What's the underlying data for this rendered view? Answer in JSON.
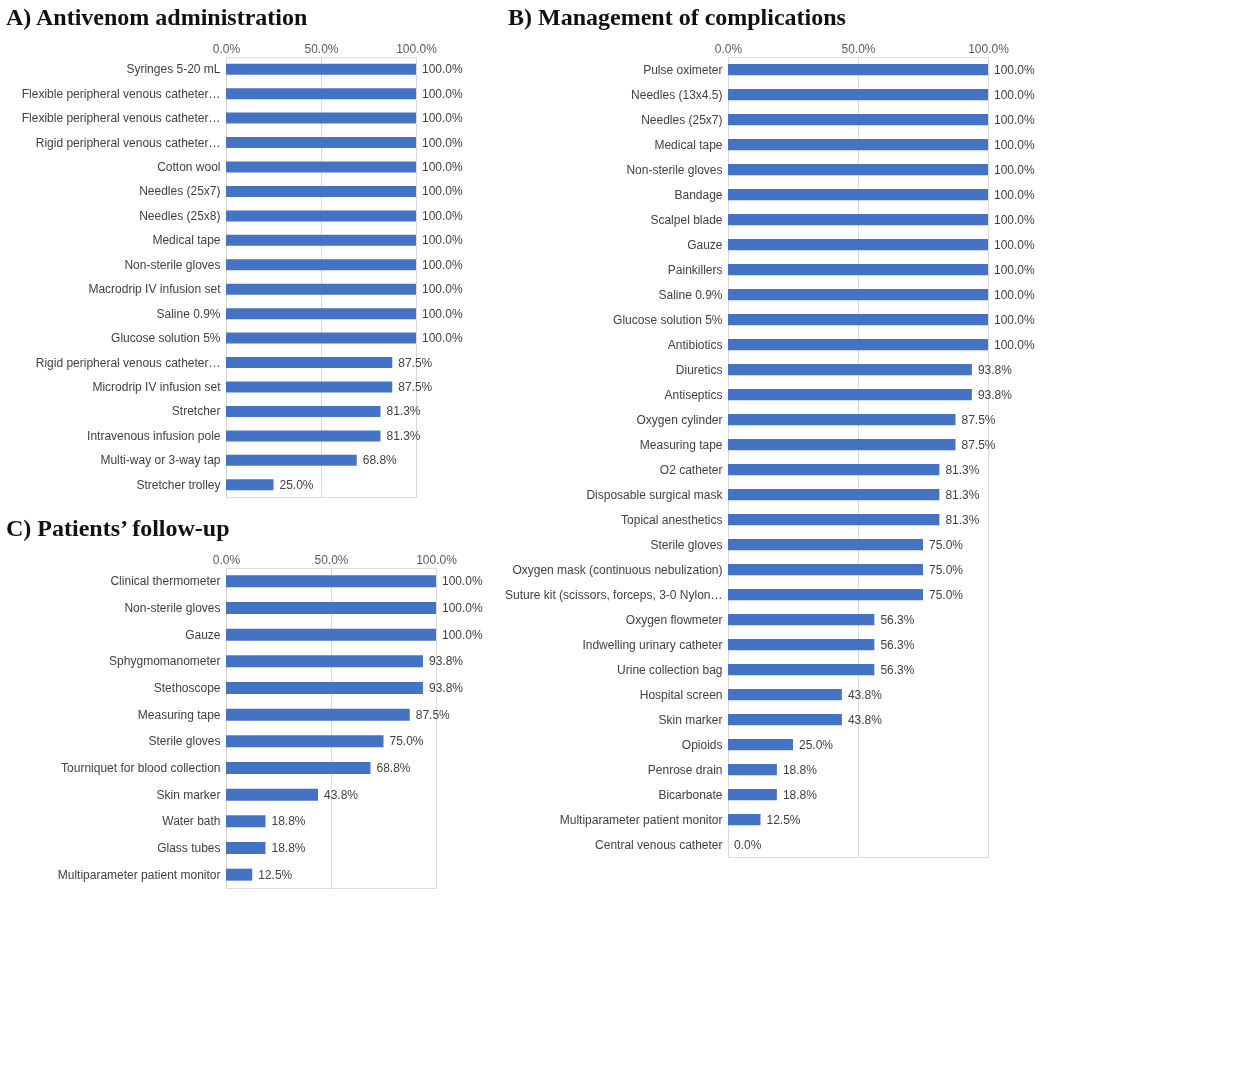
{
  "chart_data": [
    {
      "type": "bar",
      "orientation": "horizontal",
      "title": "A)  Antivenom administration",
      "color": "#4472c4",
      "grid": "x",
      "xlim": [
        0,
        100
      ],
      "xticks": [
        {
          "value": 0,
          "label": "0.0%"
        },
        {
          "value": 50,
          "label": "50.0%"
        },
        {
          "value": 100,
          "label": "100.0%"
        }
      ],
      "categories": [
        "Syringes 5-20 mL",
        "Flexible peripheral venous catheter…",
        "Flexible peripheral venous catheter…",
        "Rigid peripheral venous catheter…",
        "Cotton wool",
        "Needles (25x7)",
        "Needles (25x8)",
        "Medical tape",
        "Non-sterile gloves",
        "Macrodrip IV infusion set",
        "Saline 0.9%",
        "Glucose solution 5%",
        "Rigid peripheral venous catheter…",
        "Microdrip IV infusion set",
        "Stretcher",
        "Intravenous infusion pole",
        "Multi-way or 3-way tap",
        "Stretcher trolley"
      ],
      "values": [
        100,
        100,
        100,
        100,
        100,
        100,
        100,
        100,
        100,
        100,
        100,
        100,
        87.5,
        87.5,
        81.3,
        81.3,
        68.8,
        25.0
      ],
      "value_labels": [
        "100.0%",
        "100.0%",
        "100.0%",
        "100.0%",
        "100.0%",
        "100.0%",
        "100.0%",
        "100.0%",
        "100.0%",
        "100.0%",
        "100.0%",
        "100.0%",
        "87.5%",
        "87.5%",
        "81.3%",
        "81.3%",
        "68.8%",
        "25.0%"
      ]
    },
    {
      "type": "bar",
      "orientation": "horizontal",
      "title": "B)  Management of complications",
      "color": "#4472c4",
      "grid": "x",
      "xlim": [
        0,
        100
      ],
      "xticks": [
        {
          "value": 0,
          "label": "0.0%"
        },
        {
          "value": 50,
          "label": "50.0%"
        },
        {
          "value": 100,
          "label": "100.0%"
        }
      ],
      "categories": [
        "Pulse oximeter",
        "Needles (13x4.5)",
        "Needles (25x7)",
        "Medical tape",
        "Non-sterile gloves",
        "Bandage",
        "Scalpel blade",
        "Gauze",
        "Painkillers",
        "Saline 0.9%",
        "Glucose solution 5%",
        "Antibiotics",
        "Diuretics",
        "Antiseptics",
        "Oxygen cylinder",
        "Measuring tape",
        "O2 catheter",
        "Disposable surgical mask",
        "Topical anesthetics",
        "Sterile gloves",
        "Oxygen mask (continuous nebulization)",
        "Suture kit (scissors, forceps, 3-0 Nylon…",
        "Oxygen flowmeter",
        "Indwelling urinary catheter",
        "Urine collection bag",
        "Hospital screen",
        "Skin marker",
        "Opioids",
        "Penrose drain",
        "Bicarbonate",
        "Multiparameter patient monitor",
        "Central venous catheter"
      ],
      "values": [
        100,
        100,
        100,
        100,
        100,
        100,
        100,
        100,
        100,
        100,
        100,
        100,
        93.8,
        93.8,
        87.5,
        87.5,
        81.3,
        81.3,
        81.3,
        75.0,
        75.0,
        75.0,
        56.3,
        56.3,
        56.3,
        43.8,
        43.8,
        25.0,
        18.8,
        18.8,
        12.5,
        0.0
      ],
      "value_labels": [
        "100.0%",
        "100.0%",
        "100.0%",
        "100.0%",
        "100.0%",
        "100.0%",
        "100.0%",
        "100.0%",
        "100.0%",
        "100.0%",
        "100.0%",
        "100.0%",
        "93.8%",
        "93.8%",
        "87.5%",
        "87.5%",
        "81.3%",
        "81.3%",
        "81.3%",
        "75.0%",
        "75.0%",
        "75.0%",
        "56.3%",
        "56.3%",
        "56.3%",
        "43.8%",
        "43.8%",
        "25.0%",
        "18.8%",
        "18.8%",
        "12.5%",
        "0.0%"
      ]
    },
    {
      "type": "bar",
      "orientation": "horizontal",
      "title": "C)  Patients’ follow-up",
      "color": "#4472c4",
      "grid": "x",
      "xlim": [
        0,
        100
      ],
      "xticks": [
        {
          "value": 0,
          "label": "0.0%"
        },
        {
          "value": 50,
          "label": "50.0%"
        },
        {
          "value": 100,
          "label": "100.0%"
        }
      ],
      "categories": [
        "Clinical thermometer",
        "Non-sterile gloves",
        "Gauze",
        "Sphygmomanometer",
        "Stethoscope",
        "Measuring tape",
        "Sterile gloves",
        "Tourniquet for blood collection",
        "Skin marker",
        "Water bath",
        "Glass tubes",
        "Multiparameter patient monitor"
      ],
      "values": [
        100,
        100,
        100,
        93.8,
        93.8,
        87.5,
        75.0,
        68.8,
        43.8,
        18.8,
        18.8,
        12.5
      ],
      "value_labels": [
        "100.0%",
        "100.0%",
        "100.0%",
        "93.8%",
        "93.8%",
        "87.5%",
        "75.0%",
        "68.8%",
        "43.8%",
        "18.8%",
        "18.8%",
        "12.5%"
      ]
    }
  ]
}
